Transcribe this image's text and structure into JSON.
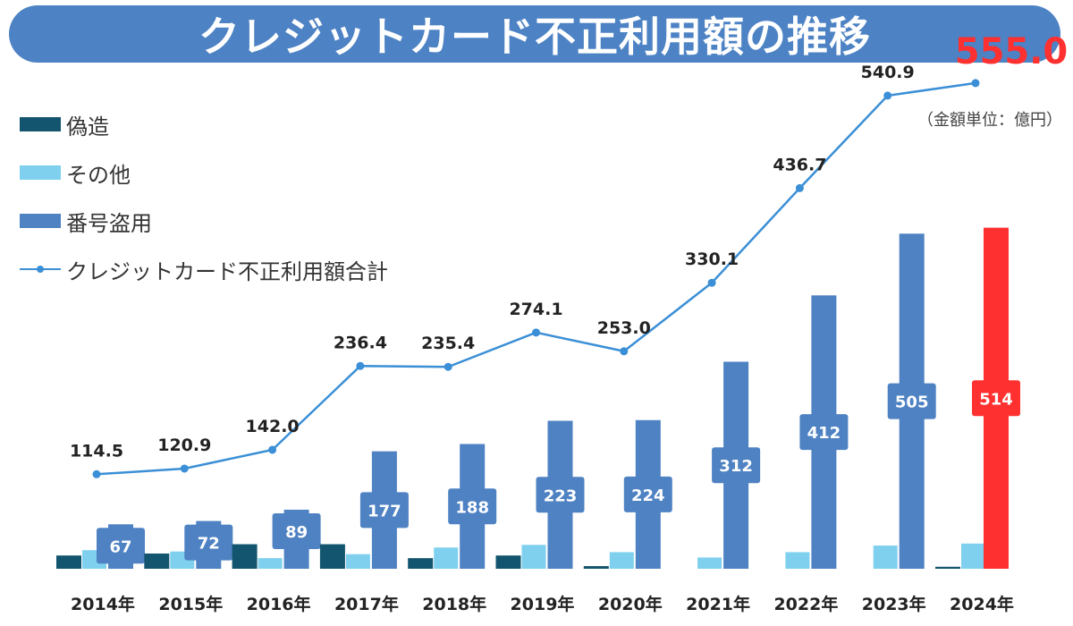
{
  "title": "クレジットカード不正利用額の推移",
  "unit_note": "（金額単位：億円）",
  "colors": {
    "banner": "#4d82c4",
    "forgery": "#13556e",
    "other": "#7ed0ee",
    "number_theft": "#4e82c3",
    "total_line": "#3b8fd6",
    "highlight": "#ff3030"
  },
  "legend": {
    "forgery": "偽造",
    "other": "その他",
    "number_theft": "番号盗用",
    "total": "クレジットカード不正利用額合計"
  },
  "chart_data": {
    "type": "bar",
    "categories": [
      "2014年",
      "2015年",
      "2016年",
      "2017年",
      "2018年",
      "2019年",
      "2020年",
      "2021年",
      "2022年",
      "2023年",
      "2024年"
    ],
    "series": [
      {
        "name": "偽造",
        "kind": "bar",
        "values": [
          20,
          23,
          37,
          37,
          16,
          20,
          4,
          0,
          0,
          0,
          3
        ]
      },
      {
        "name": "その他",
        "kind": "bar",
        "values": [
          28,
          26,
          16,
          22,
          32,
          36,
          25,
          17,
          25,
          35,
          38
        ]
      },
      {
        "name": "番号盗用",
        "kind": "bar",
        "values": [
          67,
          72,
          89,
          177,
          188,
          223,
          224,
          312,
          412,
          505,
          514
        ],
        "data_labels": [
          "67",
          "72",
          "89",
          "177",
          "188",
          "223",
          "224",
          "312",
          "412",
          "505",
          "514"
        ]
      },
      {
        "name": "クレジットカード不正利用額合計",
        "kind": "line",
        "values": [
          114.5,
          120.9,
          142.0,
          236.4,
          235.4,
          274.1,
          253.0,
          330.1,
          436.7,
          540.9,
          555.0
        ],
        "data_labels": [
          "114.5",
          "120.9",
          "142.0",
          "236.4",
          "235.4",
          "274.1",
          "253.0",
          "330.1",
          "436.7",
          "540.9",
          "555.0"
        ]
      }
    ],
    "highlight_category": "2024年",
    "ylim": [
      0,
      600
    ],
    "grid": false,
    "legend_position": "top-left"
  }
}
